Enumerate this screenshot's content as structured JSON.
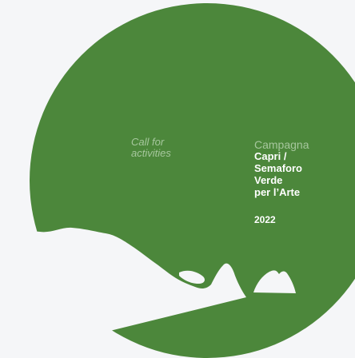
{
  "poster": {
    "colors": {
      "background": "#f5f6f8",
      "green": "#4c873b",
      "light_green": "#a6c79d",
      "coast": "#ffffff"
    },
    "call_lines": [
      "Call for",
      "activities"
    ],
    "campagna": "Campagna",
    "title_lines": [
      "Capri /",
      "Semaforo",
      "Verde",
      "per l’Arte"
    ],
    "year": "2022"
  }
}
